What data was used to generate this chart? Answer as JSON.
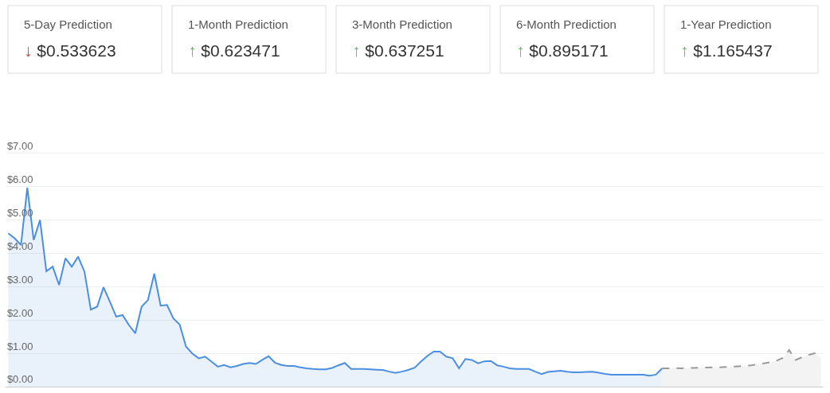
{
  "chart_data": [
    {
      "type": "other",
      "annotations": [
        "5-Day Prediction",
        "↓ $0.533623",
        "1-Month Prediction",
        "↑ $0.623471",
        "3-Month Prediction",
        "↑ $0.637251",
        "6-Month Prediction",
        "↑ $0.895171",
        "1-Year Prediction",
        "↑ $1.165437"
      ],
      "colors": [
        "#e53935",
        "#5cb85c",
        "#5cb85c",
        "#5cb85c",
        "#5cb85c"
      ]
    },
    {
      "type": "area",
      "categories": [
        null,
        null,
        null,
        null,
        null,
        null,
        null,
        null,
        null,
        null,
        null,
        null,
        null,
        null,
        null,
        null,
        null,
        null,
        null,
        null,
        null,
        null,
        null,
        null,
        null,
        null,
        null,
        null,
        null,
        null,
        null,
        null,
        null,
        null,
        null,
        null,
        null,
        null,
        null,
        null,
        null,
        null,
        null,
        null,
        null,
        null,
        null,
        null,
        null,
        null,
        null,
        null,
        null,
        null,
        null,
        null,
        null,
        null,
        null,
        null,
        null,
        null,
        null,
        null,
        null,
        null,
        null,
        null,
        null,
        null,
        null,
        null,
        null,
        null,
        null,
        null,
        null,
        null,
        null,
        null,
        null,
        null,
        null,
        null,
        null,
        null,
        null,
        null,
        null,
        null,
        null,
        null,
        null,
        null,
        null,
        null,
        null,
        null,
        null,
        null,
        null,
        null,
        null,
        null,
        null,
        null,
        null,
        null,
        null,
        null,
        null,
        null,
        null,
        null,
        null,
        null,
        null,
        null,
        null,
        null,
        null,
        null,
        null,
        null,
        null,
        null,
        null,
        null,
        null
      ],
      "series": [
        {
          "color": "#4a8fe0",
          "line_style": "solid",
          "values": [
            4.6,
            4.45,
            4.25,
            5.97,
            4.4,
            5.0,
            3.46,
            3.6,
            3.05,
            3.85,
            3.6,
            3.9,
            3.45,
            2.31,
            2.4,
            2.98,
            2.55,
            2.1,
            2.15,
            1.85,
            1.6,
            2.4,
            2.6,
            3.39,
            2.43,
            2.45,
            2.05,
            1.86,
            1.2,
            0.99,
            0.85,
            0.9,
            0.75,
            0.6,
            0.65,
            0.58,
            0.62,
            0.68,
            0.71,
            0.68,
            0.8,
            0.91,
            0.72,
            0.65,
            0.62,
            0.62,
            0.58,
            0.55,
            0.53,
            0.52,
            0.52,
            0.56,
            0.64,
            0.71,
            0.53,
            0.53,
            0.53,
            0.52,
            0.51,
            0.5,
            0.45,
            0.41,
            0.45,
            0.5,
            0.57,
            0.75,
            0.92,
            1.05,
            1.05,
            0.9,
            0.85,
            0.55,
            0.83,
            0.8,
            0.7,
            0.76,
            0.77,
            0.64,
            0.6,
            0.55,
            0.53,
            0.53,
            0.53,
            0.45,
            0.38,
            0.44,
            0.46,
            0.48,
            0.45,
            0.43,
            0.43,
            0.44,
            0.45,
            0.42,
            0.38,
            0.36,
            0.36,
            0.36,
            0.36,
            0.36,
            0.36,
            0.33,
            0.36,
            0.55,
            null,
            null,
            null,
            null,
            null,
            null,
            null,
            null,
            null,
            null,
            null,
            null,
            null,
            null,
            null,
            null,
            null,
            null,
            null,
            null,
            null,
            null,
            null,
            null,
            null
          ]
        },
        {
          "color": "#999999",
          "line_style": "dashed",
          "values": [
            null,
            null,
            null,
            null,
            null,
            null,
            null,
            null,
            null,
            null,
            null,
            null,
            null,
            null,
            null,
            null,
            null,
            null,
            null,
            null,
            null,
            null,
            null,
            null,
            null,
            null,
            null,
            null,
            null,
            null,
            null,
            null,
            null,
            null,
            null,
            null,
            null,
            null,
            null,
            null,
            null,
            null,
            null,
            null,
            null,
            null,
            null,
            null,
            null,
            null,
            null,
            null,
            null,
            null,
            null,
            null,
            null,
            null,
            null,
            null,
            null,
            null,
            null,
            null,
            null,
            null,
            null,
            null,
            null,
            null,
            null,
            null,
            null,
            null,
            null,
            null,
            null,
            null,
            null,
            null,
            null,
            null,
            null,
            null,
            null,
            null,
            null,
            null,
            null,
            null,
            null,
            null,
            null,
            null,
            null,
            null,
            null,
            null,
            null,
            null,
            null,
            null,
            null,
            0.55,
            0.55,
            0.56,
            0.55,
            0.56,
            0.56,
            0.57,
            0.57,
            0.58,
            0.58,
            0.59,
            0.6,
            0.61,
            0.62,
            0.64,
            0.67,
            0.7,
            0.73,
            0.78,
            0.86,
            1.1,
            0.8,
            0.88,
            0.95,
            1.0,
            0.88
          ]
        }
      ],
      "ylim": [
        0,
        11.6
      ],
      "yticks": [
        {
          "value": 0,
          "label": "$0.00"
        },
        {
          "value": 1,
          "label": "$1.00"
        },
        {
          "value": 2,
          "label": "$2.00"
        },
        {
          "value": 3,
          "label": "$3.00"
        },
        {
          "value": 4,
          "label": "$4.00"
        },
        {
          "value": 5,
          "label": "$5.00"
        },
        {
          "value": 6,
          "label": "$6.00"
        },
        {
          "value": 7,
          "label": "$7.00"
        }
      ],
      "grid": "y",
      "tick_labels": "y"
    }
  ]
}
